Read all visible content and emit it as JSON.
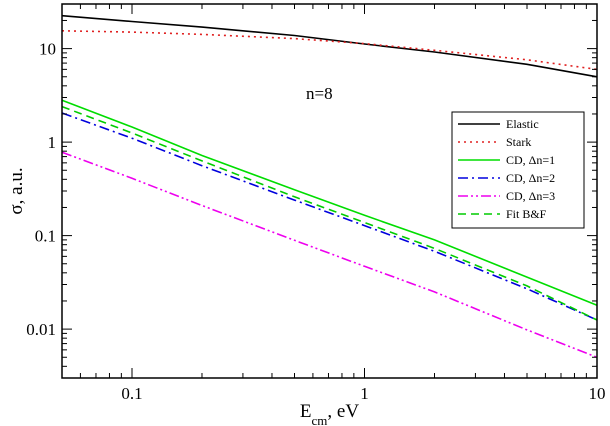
{
  "chart_data": {
    "type": "line",
    "title": "",
    "xlabel": "E",
    "xlabel_sub": "cm",
    "xlabel_unit": ", eV",
    "ylabel": "σ, a.u.",
    "xscale": "log",
    "yscale": "log",
    "xlim": [
      0.05,
      10
    ],
    "ylim": [
      0.003,
      30
    ],
    "grid": false,
    "legend_position": "right",
    "annotation": "n=8",
    "xticks": [
      {
        "value": 0.1,
        "label": "0.1"
      },
      {
        "value": 1,
        "label": "1"
      },
      {
        "value": 10,
        "label": "10"
      }
    ],
    "yticks": [
      {
        "value": 0.01,
        "label": "0.01"
      },
      {
        "value": 0.1,
        "label": "0.1"
      },
      {
        "value": 1,
        "label": "1"
      },
      {
        "value": 10,
        "label": "10"
      }
    ],
    "series": [
      {
        "name": "Elastic",
        "color": "#000000",
        "dash": "solid",
        "x": [
          0.05,
          0.1,
          0.2,
          0.5,
          1,
          2,
          5,
          10
        ],
        "y": [
          22.5,
          19.5,
          17,
          13.8,
          11.2,
          9.2,
          6.8,
          5.0
        ]
      },
      {
        "name": "Stark",
        "color": "#e02020",
        "dash": "dotted",
        "x": [
          0.05,
          0.1,
          0.2,
          0.5,
          1,
          2,
          5,
          10
        ],
        "y": [
          15.5,
          15.0,
          14.2,
          12.8,
          11.3,
          9.6,
          7.6,
          6.0
        ]
      },
      {
        "name": "CD, Δn=1",
        "color": "#00dd00",
        "dash": "solid",
        "x": [
          0.05,
          0.1,
          0.2,
          0.5,
          1,
          2,
          5,
          10
        ],
        "y": [
          2.8,
          1.45,
          0.72,
          0.31,
          0.165,
          0.09,
          0.036,
          0.018
        ]
      },
      {
        "name": "CD, Δn=2",
        "color": "#0000dd",
        "dash": "dashdot",
        "x": [
          0.05,
          0.1,
          0.2,
          0.5,
          1,
          2,
          5,
          10
        ],
        "y": [
          2.05,
          1.1,
          0.56,
          0.24,
          0.128,
          0.068,
          0.027,
          0.0125
        ]
      },
      {
        "name": "CD, Δn=3",
        "color": "#ee00ee",
        "dash": "dashdotdot",
        "x": [
          0.05,
          0.1,
          0.2,
          0.5,
          1,
          2,
          5,
          10
        ],
        "y": [
          0.78,
          0.41,
          0.21,
          0.089,
          0.047,
          0.025,
          0.0098,
          0.005
        ]
      },
      {
        "name": "Fit B&F",
        "color": "#00cc00",
        "dash": "dashed",
        "x": [
          0.05,
          0.1,
          0.2,
          0.5,
          1,
          2,
          5,
          10
        ],
        "y": [
          2.4,
          1.25,
          0.63,
          0.26,
          0.138,
          0.073,
          0.029,
          0.0125
        ]
      }
    ]
  }
}
